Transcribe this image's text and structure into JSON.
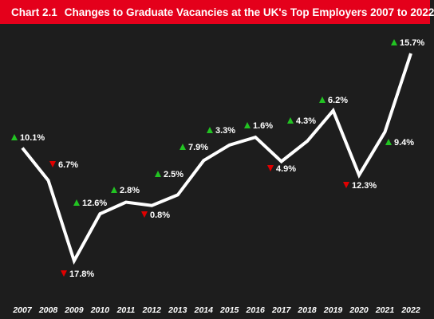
{
  "header": {
    "chart_number": "Chart 2.1",
    "title": "Changes to Graduate Vacancies at the UK's Top Employers 2007 to 2022"
  },
  "colors": {
    "title_bar": "#e4001b",
    "background": "#1d1d1d",
    "line": "#ffffff",
    "up": "#22c322",
    "down": "#e00000"
  },
  "chart_data": {
    "type": "line",
    "title": "Changes to Graduate Vacancies at the UK's Top Employers 2007 to 2022",
    "categories": [
      "2007",
      "2008",
      "2009",
      "2010",
      "2011",
      "2012",
      "2013",
      "2014",
      "2015",
      "2016",
      "2017",
      "2018",
      "2019",
      "2020",
      "2021",
      "2022"
    ],
    "series": [
      {
        "values": [
          100,
          93.3,
          76.7,
          86.4,
          88.8,
          88.1,
          90.3,
          97.4,
          100.6,
          102.2,
          97.2,
          101.4,
          107.7,
          94.4,
          103.3,
          119.5
        ]
      }
    ],
    "annotations": [
      {
        "year": "2007",
        "text": "10.1%",
        "direction": "up"
      },
      {
        "year": "2008",
        "text": "6.7%",
        "direction": "down"
      },
      {
        "year": "2009",
        "text": "17.8%",
        "direction": "down"
      },
      {
        "year": "2010",
        "text": "12.6%",
        "direction": "up"
      },
      {
        "year": "2011",
        "text": "2.8%",
        "direction": "up"
      },
      {
        "year": "2012",
        "text": "0.8%",
        "direction": "down"
      },
      {
        "year": "2013",
        "text": "2.5%",
        "direction": "up"
      },
      {
        "year": "2014",
        "text": "7.9%",
        "direction": "up"
      },
      {
        "year": "2015",
        "text": "3.3%",
        "direction": "up"
      },
      {
        "year": "2016",
        "text": "1.6%",
        "direction": "up"
      },
      {
        "year": "2017",
        "text": "4.9%",
        "direction": "down"
      },
      {
        "year": "2018",
        "text": "4.3%",
        "direction": "up"
      },
      {
        "year": "2019",
        "text": "6.2%",
        "direction": "up"
      },
      {
        "year": "2020",
        "text": "12.3%",
        "direction": "down"
      },
      {
        "year": "2021",
        "text": "9.4%",
        "direction": "up"
      },
      {
        "year": "2022",
        "text": "15.7%",
        "direction": "up"
      }
    ],
    "grid": false,
    "legend": "none"
  }
}
